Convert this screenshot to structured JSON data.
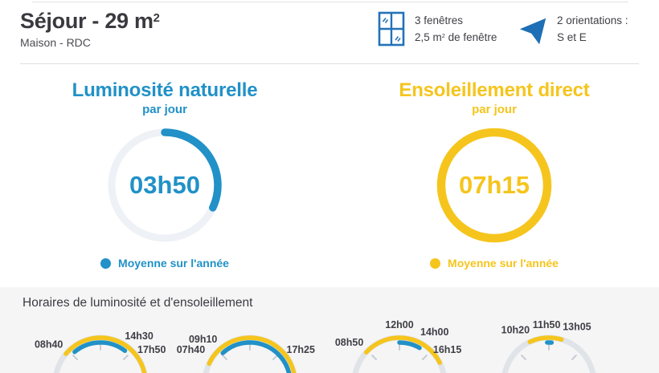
{
  "header": {
    "title_main": "Séjour - 29 m",
    "title_sup": "2",
    "subtitle": "Maison - RDC",
    "windows": {
      "icon": "window-icon",
      "line1": "3 fenêtres",
      "line2_a": "2,5 m",
      "line2_sup": "2",
      "line2_b": " de fenêtre"
    },
    "orientations": {
      "icon": "compass-arrow-icon",
      "line1": "2 orientations :",
      "line2": "S et E"
    }
  },
  "daylight": {
    "title": "Luminosité naturelle",
    "subtitle": "par jour",
    "value": "03h50",
    "arc_deg": 115,
    "legend": "Moyenne sur l'année",
    "color": "#2191c7"
  },
  "sunshine": {
    "title": "Ensoleillement direct",
    "subtitle": "par jour",
    "value": "07h15",
    "arc_deg": 360,
    "legend": "Moyenne sur l'année",
    "color": "#f5c51d"
  },
  "schedule": {
    "title": "Horaires de luminosité et d'ensoleillement",
    "scale": {
      "start": "06h00",
      "end": "18h00"
    },
    "gauges": [
      {
        "sun_start": "08h40",
        "sun_end": "17h50",
        "light_start": "09h20",
        "light_end": "14h30",
        "labels": [
          "08h40",
          "14h30",
          "17h50"
        ]
      },
      {
        "sun_start": "07h40",
        "sun_end": "17h25",
        "light_start": "09h10",
        "light_end": "17h25",
        "labels": [
          "07h40",
          "09h10",
          "17h25"
        ]
      },
      {
        "sun_start": "08h50",
        "sun_end": "16h15",
        "light_start": "12h00",
        "light_end": "14h00",
        "labels": [
          "08h50",
          "12h00",
          "14h00",
          "16h15"
        ]
      },
      {
        "sun_start": "10h20",
        "sun_end": "13h05",
        "light_start": "11h50",
        "light_end": "12h15",
        "labels": [
          "10h20",
          "11h50",
          "13h05"
        ]
      }
    ]
  },
  "colors": {
    "blue": "#2191c7",
    "yellow": "#f5c51d",
    "icon_blue": "#1e6fb5",
    "ring_track_light": "#eef1f6",
    "gauge_track_gray": "#e0e4e8",
    "tick_gray": "#c6ccd2",
    "section_bg": "#f5f5f6",
    "text_dark": "#3a3a40",
    "divider": "#dedede"
  },
  "chart_data": [
    {
      "type": "gauge",
      "title": "Luminosité naturelle",
      "subtitle": "par jour",
      "value": "03h50",
      "value_hours": 3.83,
      "dial_scale_hours": 12,
      "arc_deg": 115,
      "color": "#2191c7",
      "legend": "Moyenne sur l'année"
    },
    {
      "type": "gauge",
      "title": "Ensoleillement direct",
      "subtitle": "par jour",
      "value": "07h15",
      "value_hours": 7.25,
      "arc_deg": 360,
      "ring_filled": true,
      "color": "#f5c51d",
      "legend": "Moyenne sur l'année"
    },
    {
      "type": "half-dial-timeline",
      "title": "Horaires de luminosité et d'ensoleillement",
      "x_range": [
        "06h00",
        "18h00"
      ],
      "series": [
        {
          "name": "ensoleillement direct (jaune)",
          "intervals": [
            [
              "08h40",
              "17h50"
            ],
            [
              "07h40",
              "17h25"
            ],
            [
              "08h50",
              "16h15"
            ],
            [
              "10h20",
              "13h05"
            ]
          ]
        },
        {
          "name": "luminosité naturelle (bleu)",
          "intervals": [
            [
              "09h20",
              "14h30"
            ],
            [
              "09h10",
              "17h25"
            ],
            [
              "12h00",
              "14h00"
            ],
            [
              "11h50",
              "12h15"
            ]
          ]
        }
      ]
    }
  ]
}
